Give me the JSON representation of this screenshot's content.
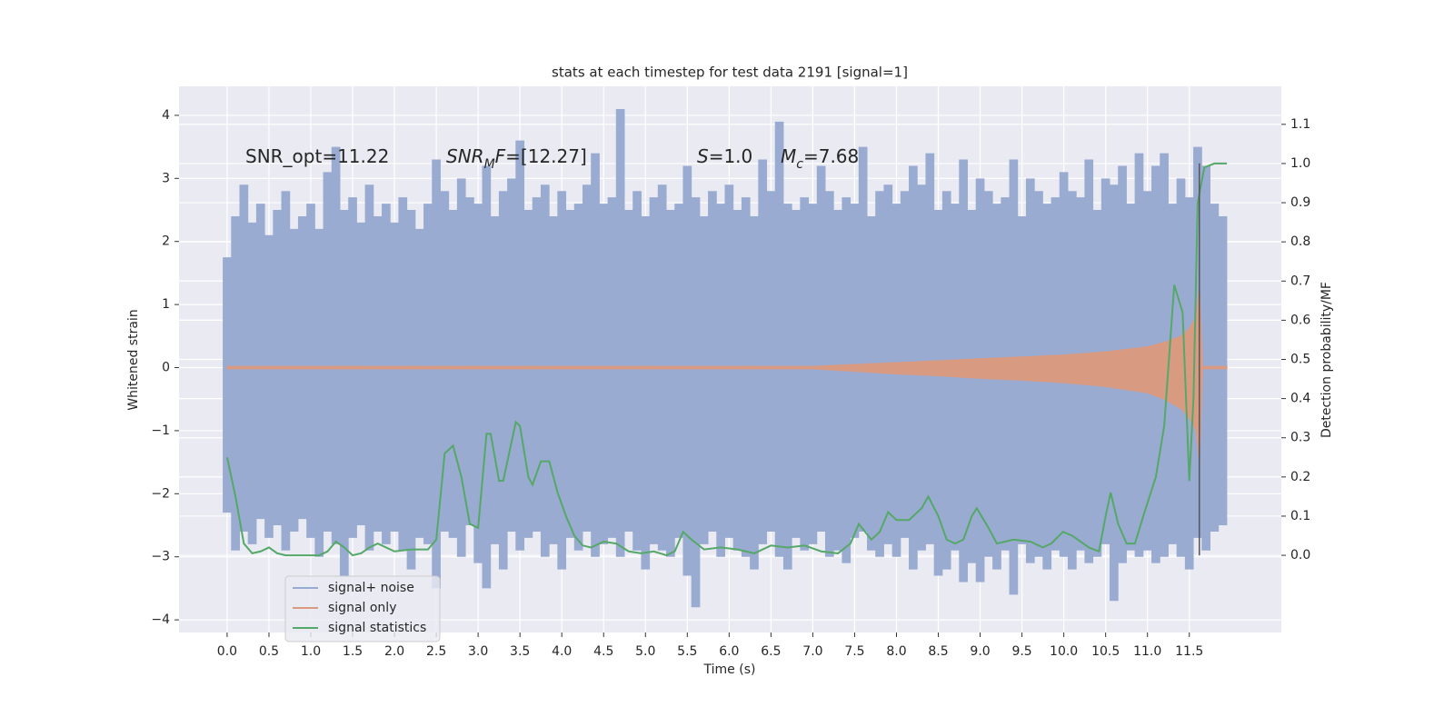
{
  "chart_data": {
    "type": "line",
    "title": "stats at each timestep for test data 2191 [signal=1]",
    "x_label": "Time (s)",
    "y_label": "Whitened strain",
    "y2_label": "Detection probability/MF",
    "xlim": [
      -0.575,
      12.6
    ],
    "ylim": [
      -4.2,
      4.46
    ],
    "y2lim": [
      -0.197,
      1.197
    ],
    "xticks": [
      {
        "value": 0,
        "label": "0.0"
      },
      0.5,
      {
        "value": 1,
        "label": "1.0"
      },
      1.5,
      {
        "value": 2,
        "label": "2.0"
      },
      2.5,
      {
        "value": 3,
        "label": "3.0"
      },
      3.5,
      {
        "value": 4,
        "label": "4.0"
      },
      4.5,
      {
        "value": 5,
        "label": "5.0"
      },
      5.5,
      {
        "value": 6,
        "label": "6.0"
      },
      6.5,
      {
        "value": 7,
        "label": "7.0"
      },
      7.5,
      {
        "value": 8,
        "label": "8.0"
      },
      8.5,
      {
        "value": 9,
        "label": "9.0"
      },
      9.5,
      {
        "value": 10,
        "label": "10.0"
      },
      10.5,
      {
        "value": 11,
        "label": "11.0"
      },
      11.5
    ],
    "yticks": [
      {
        "value": -4,
        "label": "−4"
      },
      {
        "value": -3,
        "label": "−3"
      },
      {
        "value": -2,
        "label": "−2"
      },
      {
        "value": -1,
        "label": "−1"
      },
      0,
      1,
      2,
      3,
      4
    ],
    "y2ticks": [
      {
        "value": 0,
        "label": "0.0"
      },
      0.1,
      0.2,
      0.3,
      0.4,
      0.5,
      0.6,
      0.7,
      0.8,
      0.9,
      {
        "value": 1,
        "label": "1.0"
      },
      1.1
    ],
    "grid": true,
    "legend": "lower left",
    "annotations": [
      [
        {
          "text": "SNR_opt=11.22"
        }
      ],
      [
        {
          "text": "SNR",
          "italic": true
        },
        {
          "text": "M",
          "italic": true,
          "sub": true
        },
        {
          "text": "F",
          "italic": true
        },
        {
          "text": "=[12.27]"
        }
      ],
      [
        {
          "text": "S",
          "italic": true
        },
        {
          "text": "=1.0"
        }
      ],
      [
        {
          "text": "M",
          "italic": true
        },
        {
          "text": "c",
          "italic": true,
          "sub": true
        },
        {
          "text": "=7.68"
        }
      ]
    ],
    "vline": {
      "x": 11.62,
      "y2": [
        0,
        1.0
      ],
      "color": "#555555"
    },
    "series": [
      {
        "name": "signal+ noise",
        "color": "#9aabd1",
        "style": "spikes",
        "axis": "y",
        "x": [
          0.0,
          0.1,
          0.2,
          0.3,
          0.4,
          0.5,
          0.6,
          0.7,
          0.8,
          0.9,
          1.0,
          1.1,
          1.2,
          1.3,
          1.4,
          1.5,
          1.6,
          1.7,
          1.8,
          1.9,
          2.0,
          2.1,
          2.2,
          2.3,
          2.4,
          2.5,
          2.6,
          2.7,
          2.8,
          2.9,
          3.0,
          3.1,
          3.2,
          3.3,
          3.4,
          3.5,
          3.6,
          3.7,
          3.8,
          3.9,
          4.0,
          4.1,
          4.2,
          4.3,
          4.4,
          4.5,
          4.6,
          4.7,
          4.8,
          4.9,
          5.0,
          5.1,
          5.2,
          5.3,
          5.4,
          5.5,
          5.6,
          5.7,
          5.8,
          5.9,
          6.0,
          6.1,
          6.2,
          6.3,
          6.4,
          6.5,
          6.6,
          6.7,
          6.8,
          6.9,
          7.0,
          7.1,
          7.2,
          7.3,
          7.4,
          7.5,
          7.6,
          7.7,
          7.8,
          7.9,
          8.0,
          8.1,
          8.2,
          8.3,
          8.4,
          8.5,
          8.6,
          8.7,
          8.8,
          8.9,
          9.0,
          9.1,
          9.2,
          9.3,
          9.4,
          9.5,
          9.6,
          9.7,
          9.8,
          9.9,
          10.0,
          10.1,
          10.2,
          10.3,
          10.4,
          10.5,
          10.6,
          10.7,
          10.8,
          10.9,
          11.0,
          11.1,
          11.2,
          11.3,
          11.4,
          11.5,
          11.6,
          11.7,
          11.8,
          11.9
        ],
        "values": [
          1.75,
          2.4,
          2.9,
          2.3,
          2.6,
          2.1,
          2.5,
          2.8,
          2.2,
          2.4,
          2.6,
          2.2,
          3.1,
          3.5,
          2.5,
          2.7,
          2.3,
          2.9,
          2.4,
          2.6,
          2.3,
          2.7,
          2.5,
          2.2,
          2.6,
          3.3,
          2.8,
          2.5,
          3.0,
          2.7,
          2.6,
          3.2,
          2.4,
          2.8,
          3.0,
          3.6,
          2.5,
          2.7,
          2.9,
          2.4,
          2.8,
          2.5,
          2.6,
          2.9,
          3.4,
          2.6,
          2.7,
          4.1,
          2.5,
          2.8,
          2.4,
          2.7,
          2.9,
          2.5,
          2.6,
          3.2,
          2.7,
          2.4,
          2.8,
          2.6,
          2.9,
          2.5,
          2.7,
          2.4,
          3.3,
          2.8,
          3.9,
          2.6,
          2.5,
          2.7,
          2.6,
          3.2,
          2.8,
          2.5,
          2.7,
          2.6,
          3.5,
          2.4,
          2.8,
          2.9,
          2.6,
          2.8,
          3.2,
          2.9,
          3.4,
          2.5,
          2.8,
          2.6,
          3.3,
          2.5,
          3.0,
          2.8,
          2.6,
          2.7,
          3.3,
          2.4,
          3.0,
          2.8,
          2.6,
          2.7,
          3.1,
          2.8,
          2.7,
          3.3,
          2.5,
          3.0,
          2.9,
          3.2,
          2.6,
          3.4,
          2.8,
          3.2,
          3.4,
          2.6,
          3.0,
          2.7,
          3.5,
          3.2,
          2.6,
          2.4
        ],
        "low": [
          -2.3,
          -2.9,
          -2.6,
          -2.8,
          -2.4,
          -2.7,
          -2.5,
          -2.9,
          -2.6,
          -2.4,
          -2.7,
          -3.0,
          -2.6,
          -2.8,
          -3.3,
          -2.7,
          -2.5,
          -2.9,
          -2.6,
          -2.8,
          -2.6,
          -2.9,
          -3.2,
          -2.7,
          -2.8,
          -3.5,
          -2.6,
          -2.7,
          -3.0,
          -2.5,
          -3.1,
          -3.5,
          -2.8,
          -3.2,
          -2.6,
          -2.9,
          -2.7,
          -2.6,
          -3.0,
          -2.8,
          -3.2,
          -2.7,
          -2.9,
          -2.6,
          -3.0,
          -2.8,
          -2.7,
          -3.0,
          -2.6,
          -2.9,
          -3.2,
          -2.8,
          -2.9,
          -3.0,
          -2.7,
          -3.3,
          -3.8,
          -2.8,
          -2.6,
          -3.0,
          -2.7,
          -2.9,
          -3.0,
          -3.2,
          -2.8,
          -2.6,
          -3.0,
          -3.2,
          -2.7,
          -2.9,
          -2.8,
          -2.6,
          -3.0,
          -2.9,
          -3.1,
          -2.7,
          -2.6,
          -2.9,
          -3.0,
          -2.8,
          -3.0,
          -2.7,
          -3.2,
          -2.9,
          -2.8,
          -3.3,
          -3.2,
          -2.9,
          -3.4,
          -3.1,
          -3.4,
          -3.0,
          -3.2,
          -2.9,
          -3.6,
          -2.8,
          -3.1,
          -3.0,
          -3.2,
          -2.9,
          -3.0,
          -3.2,
          -2.9,
          -3.1,
          -3.0,
          -2.8,
          -3.7,
          -3.1,
          -2.9,
          -3.0,
          -2.9,
          -3.1,
          -3.0,
          -2.8,
          -3.0,
          -3.2,
          -2.7,
          -2.9,
          -2.6,
          -2.5
        ]
      },
      {
        "name": "signal only",
        "color": "#d99a82",
        "style": "band",
        "axis": "y",
        "x": [
          0,
          7,
          7.5,
          8,
          8.5,
          9,
          9.5,
          10,
          10.5,
          11,
          11.2,
          11.4,
          11.5,
          11.58,
          11.62,
          11.66,
          11.95
        ],
        "values": [
          0.02,
          0.02,
          0.05,
          0.08,
          0.11,
          0.14,
          0.17,
          0.2,
          0.25,
          0.33,
          0.4,
          0.5,
          0.62,
          0.8,
          1.3,
          0.02,
          0.02
        ],
        "low": [
          -0.02,
          -0.02,
          -0.06,
          -0.1,
          -0.13,
          -0.17,
          -0.2,
          -0.24,
          -0.3,
          -0.4,
          -0.5,
          -0.65,
          -0.8,
          -1.0,
          -1.5,
          -0.02,
          -0.02
        ]
      },
      {
        "name": "signal statistics",
        "color": "#55a868",
        "style": "line",
        "axis": "y2",
        "x": [
          0.0,
          0.1,
          0.2,
          0.3,
          0.4,
          0.5,
          0.6,
          0.7,
          0.8,
          0.9,
          1.0,
          1.1,
          1.2,
          1.3,
          1.4,
          1.5,
          1.6,
          1.7,
          1.8,
          1.9,
          2.0,
          2.2,
          2.4,
          2.5,
          2.6,
          2.7,
          2.8,
          2.9,
          3.0,
          3.1,
          3.15,
          3.25,
          3.3,
          3.45,
          3.5,
          3.6,
          3.65,
          3.75,
          3.85,
          3.95,
          4.05,
          4.15,
          4.25,
          4.35,
          4.5,
          4.65,
          4.8,
          4.95,
          5.1,
          5.25,
          5.35,
          5.45,
          5.55,
          5.7,
          5.9,
          6.1,
          6.3,
          6.5,
          6.7,
          6.9,
          7.1,
          7.3,
          7.45,
          7.55,
          7.7,
          7.8,
          7.9,
          8.0,
          8.15,
          8.3,
          8.38,
          8.5,
          8.6,
          8.7,
          8.8,
          8.9,
          8.96,
          9.1,
          9.2,
          9.4,
          9.6,
          9.75,
          9.85,
          9.99,
          10.1,
          10.3,
          10.42,
          10.5,
          10.56,
          10.65,
          10.75,
          10.85,
          10.95,
          11.1,
          11.2,
          11.32,
          11.42,
          11.5,
          11.55,
          11.6,
          11.68,
          11.8,
          11.95
        ],
        "values": [
          0.25,
          0.15,
          0.03,
          0.005,
          0.01,
          0.02,
          0.005,
          0.0,
          0.0,
          0.0,
          0.0,
          0.0,
          0.01,
          0.035,
          0.02,
          0.0,
          0.005,
          0.02,
          0.03,
          0.02,
          0.01,
          0.015,
          0.015,
          0.04,
          0.26,
          0.28,
          0.2,
          0.08,
          0.07,
          0.31,
          0.31,
          0.19,
          0.19,
          0.34,
          0.33,
          0.2,
          0.18,
          0.24,
          0.24,
          0.16,
          0.1,
          0.05,
          0.025,
          0.02,
          0.035,
          0.03,
          0.01,
          0.005,
          0.01,
          0.0,
          0.01,
          0.06,
          0.04,
          0.015,
          0.02,
          0.015,
          0.005,
          0.025,
          0.02,
          0.025,
          0.01,
          0.005,
          0.03,
          0.08,
          0.04,
          0.06,
          0.11,
          0.09,
          0.09,
          0.12,
          0.15,
          0.1,
          0.04,
          0.03,
          0.04,
          0.1,
          0.12,
          0.07,
          0.03,
          0.04,
          0.035,
          0.02,
          0.03,
          0.06,
          0.05,
          0.02,
          0.01,
          0.1,
          0.16,
          0.08,
          0.03,
          0.03,
          0.1,
          0.2,
          0.33,
          0.69,
          0.62,
          0.19,
          0.4,
          0.9,
          0.99,
          1.0,
          1.0
        ]
      }
    ]
  }
}
